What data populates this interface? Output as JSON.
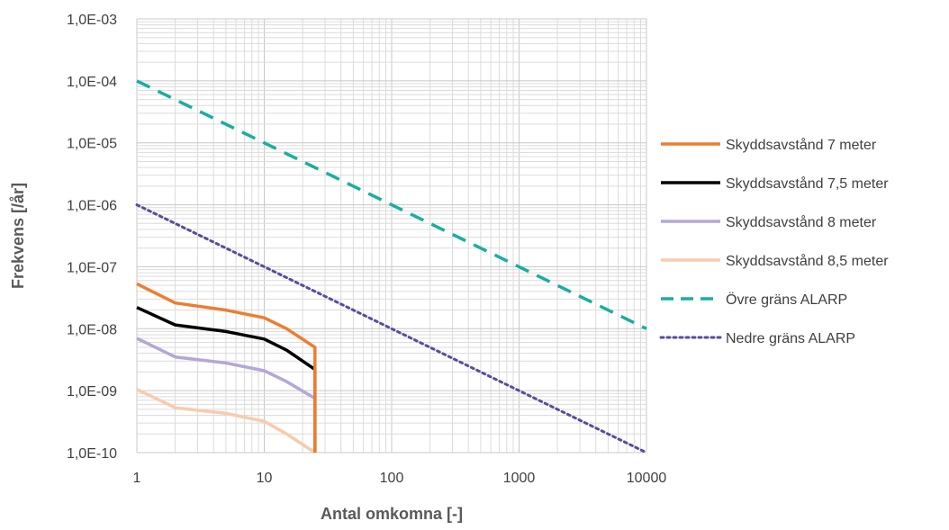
{
  "chart_data": {
    "type": "line",
    "title": "",
    "xlabel": "Antal omkomna [-]",
    "ylabel": "Frekvens [/år]",
    "x_scale": "log",
    "y_scale": "log",
    "xlim": [
      1,
      10000
    ],
    "ylim": [
      1e-10,
      0.001
    ],
    "x_ticks": [
      1,
      10,
      100,
      1000,
      10000
    ],
    "x_tick_labels": [
      "1",
      "10",
      "100",
      "1000",
      "10000"
    ],
    "y_ticks": [
      1e-10,
      1e-09,
      1e-08,
      1e-07,
      1e-06,
      1e-05,
      0.0001,
      0.001
    ],
    "y_tick_labels": [
      "1,0E-10",
      "1,0E-09",
      "1,0E-08",
      "1,0E-07",
      "1,0E-06",
      "1,0E-05",
      "1,0E-04",
      "1,0E-03"
    ],
    "grid": true,
    "legend_position": "right",
    "series": [
      {
        "name": "Skyddsavstånd 7 meter",
        "color": "#ED7D31",
        "style": "solid",
        "x": [
          1,
          2,
          5,
          10,
          15,
          25,
          25
        ],
        "y": [
          5.3e-08,
          2.6e-08,
          2e-08,
          1.5e-08,
          1e-08,
          5e-09,
          1e-10
        ]
      },
      {
        "name": "Skyddsavstånd 7,5 meter",
        "color": "#000000",
        "style": "solid",
        "x": [
          1,
          2,
          5,
          10,
          15,
          25,
          25
        ],
        "y": [
          2.2e-08,
          1.15e-08,
          9e-09,
          6.8e-09,
          4.5e-09,
          2.2e-09,
          1e-10
        ]
      },
      {
        "name": "Skyddsavstånd 8 meter",
        "color": "#B4A7D6",
        "style": "solid",
        "x": [
          1,
          2,
          5,
          10,
          15,
          25,
          25
        ],
        "y": [
          7e-09,
          3.5e-09,
          2.8e-09,
          2.1e-09,
          1.4e-09,
          7.5e-10,
          1e-10
        ]
      },
      {
        "name": "Skyddsavstånd 8,5 meter",
        "color": "#F8CBAD",
        "style": "solid",
        "x": [
          1,
          2,
          5,
          10,
          15,
          25
        ],
        "y": [
          1.05e-09,
          5.3e-10,
          4.3e-10,
          3.2e-10,
          2e-10,
          1e-10
        ]
      },
      {
        "name": "Övre gräns ALARP",
        "color": "#1AAE9F",
        "style": "dashed",
        "x": [
          1,
          10000
        ],
        "y": [
          0.0001,
          1e-08
        ]
      },
      {
        "name": "Nedre gräns ALARP",
        "color": "#5C4A9C",
        "style": "dotted",
        "x": [
          1,
          10000
        ],
        "y": [
          1e-06,
          1e-10
        ]
      }
    ]
  }
}
